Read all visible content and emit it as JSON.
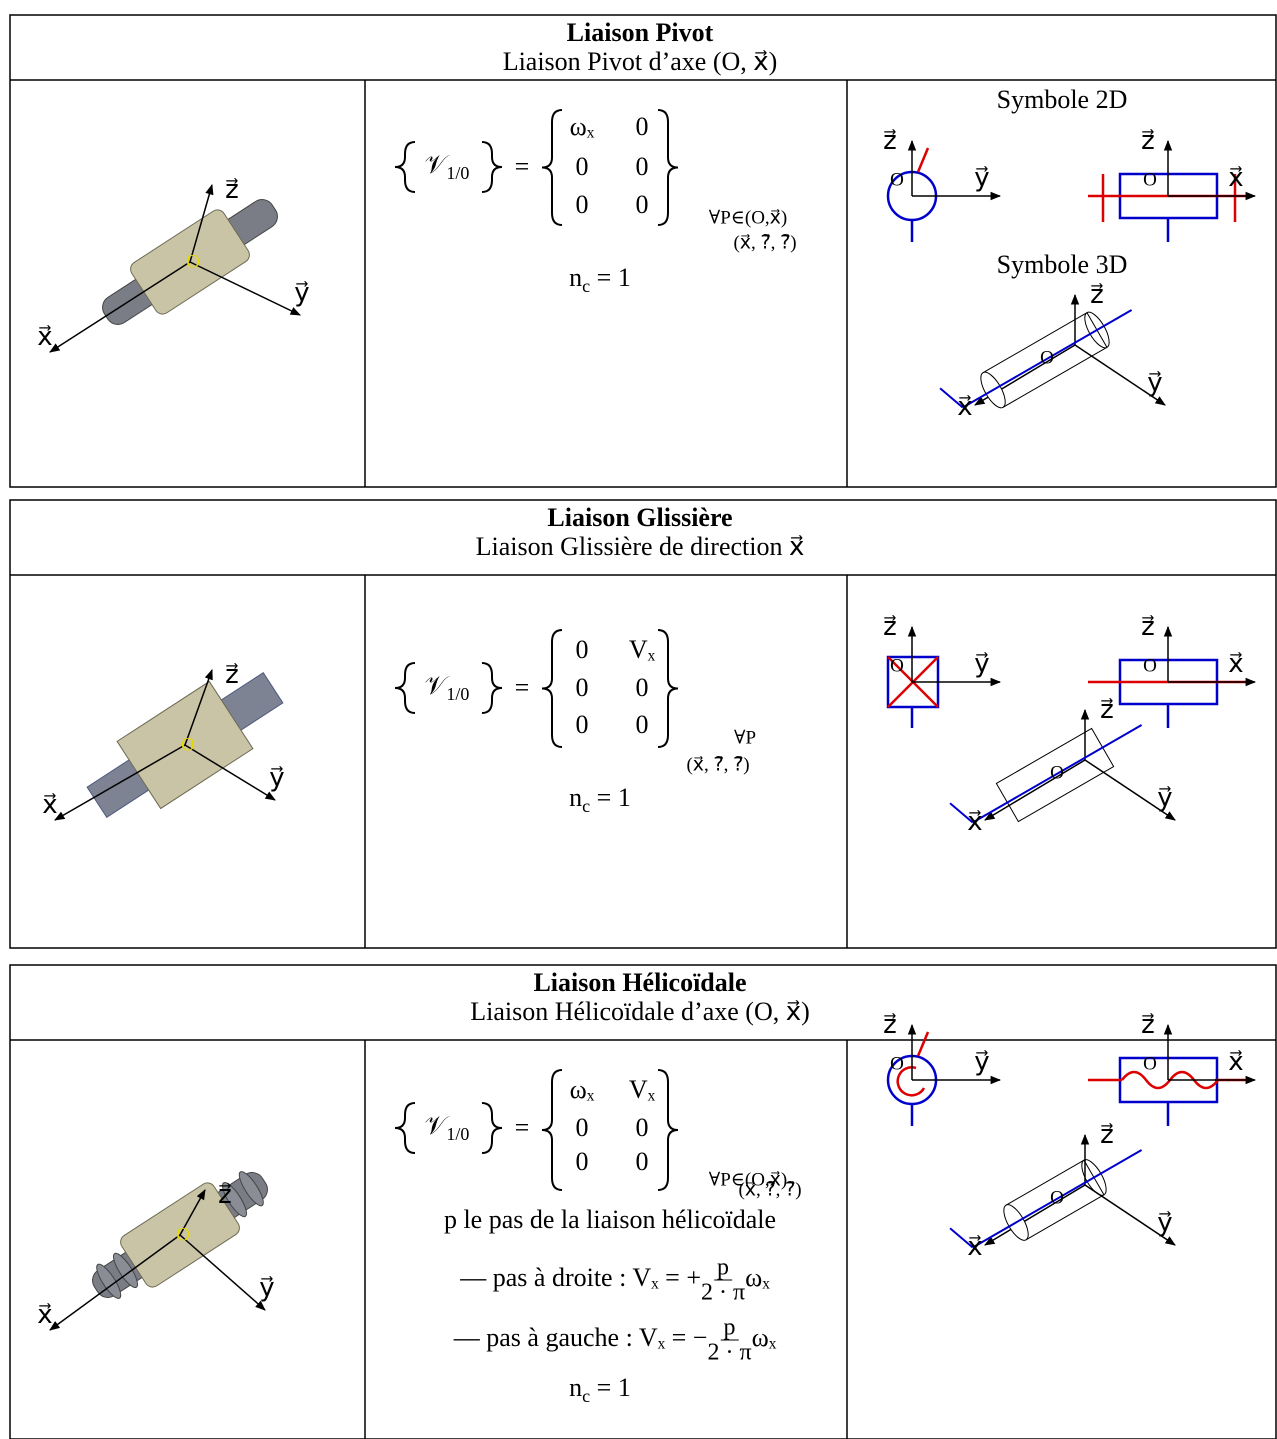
{
  "axes": {
    "x": "x⃗",
    "y": "y⃗",
    "z": "z⃗",
    "origin": "O"
  },
  "sections": [
    {
      "title": "Liaison Pivot",
      "subtitle": "Liaison Pivot d’axe (O, x⃗)",
      "torsor": {
        "symbol": "𝒱",
        "index": "1/0",
        "relation": "=",
        "matrix": [
          [
            "ωₓ",
            "0"
          ],
          [
            "0",
            "0"
          ],
          [
            "0",
            "0"
          ]
        ],
        "point": "∀P∈(O,x⃗)",
        "basis": "(x⃗, ?⃗, ?⃗)"
      },
      "nc": {
        "symbol": "n",
        "index": "c",
        "rest": "= 1"
      },
      "symbol_2d_title": "Symbole 2D",
      "symbol_3d_title": "Symbole 3D"
    },
    {
      "title": "Liaison Glissière",
      "subtitle": "Liaison Glissière de direction x⃗",
      "torsor": {
        "symbol": "𝒱",
        "index": "1/0",
        "relation": "=",
        "matrix": [
          [
            "0",
            "Vₓ"
          ],
          [
            "0",
            "0"
          ],
          [
            "0",
            "0"
          ]
        ],
        "point": "∀P",
        "basis": "(x⃗, ?⃗, ?⃗)"
      },
      "nc": {
        "symbol": "n",
        "index": "c",
        "rest": "= 1"
      }
    },
    {
      "title": "Liaison Hélicoïdale",
      "subtitle": "Liaison Hélicoïdale d’axe (O, x⃗)",
      "torsor": {
        "symbol": "𝒱",
        "index": "1/0",
        "relation": "=",
        "matrix": [
          [
            "ωₓ",
            "Vₓ"
          ],
          [
            "0",
            "0"
          ],
          [
            "0",
            "0"
          ]
        ],
        "point": "∀P∈(O,x⃗)",
        "basis": "(x⃗, ?⃗, ?⃗)"
      },
      "note": "p le pas de la liaison hélicoïdale",
      "formulas": [
        {
          "lead": "— pas à droite : Vₓ = +",
          "num": "p",
          "den": "2 · π",
          "tail": "ωₓ"
        },
        {
          "lead": "— pas à gauche : Vₓ = −",
          "num": "p",
          "den": "2 · π",
          "tail": "ωₓ"
        }
      ],
      "nc": {
        "symbol": "n",
        "index": "c",
        "rest": "= 1"
      }
    }
  ]
}
